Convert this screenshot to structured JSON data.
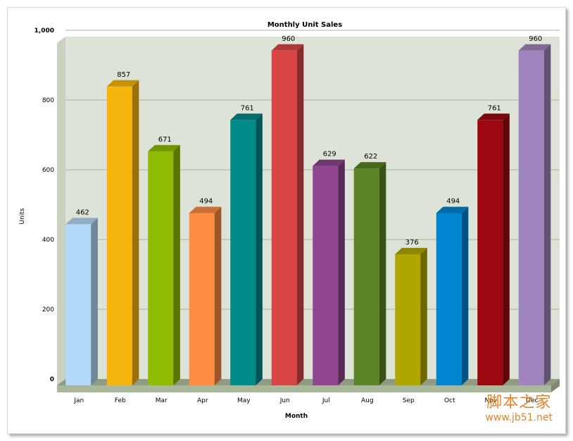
{
  "chart_data": {
    "type": "bar",
    "title": "Monthly Unit Sales",
    "xlabel": "Month",
    "ylabel": "Units",
    "categories": [
      "Jan",
      "Feb",
      "Mar",
      "Apr",
      "May",
      "Jun",
      "Jul",
      "Aug",
      "Sep",
      "Oct",
      "Nov",
      "Dec"
    ],
    "values": [
      462,
      857,
      671,
      494,
      761,
      960,
      629,
      622,
      376,
      494,
      761,
      960
    ],
    "value_labels": [
      "462",
      "857",
      "671",
      "494",
      "761",
      "960",
      "629",
      "622",
      "376",
      "494",
      "761",
      "960"
    ],
    "ylim": [
      0,
      1000
    ],
    "yticks": [
      "0",
      "200",
      "400",
      "600",
      "800",
      "1,000"
    ],
    "grid": true,
    "legend": "none",
    "colors": [
      "#b3d9f8",
      "#f6b60d",
      "#8fbb00",
      "#ff8c42",
      "#008a8a",
      "#d94545",
      "#8f4590",
      "#5a8426",
      "#b1a600",
      "#0086d1",
      "#9b0810",
      "#a084be"
    ],
    "plot_background": "#dde3d6",
    "floor_color": "#a9b89a"
  },
  "watermark": {
    "line1": "脚本之家",
    "line2": "www.jb51.net"
  }
}
